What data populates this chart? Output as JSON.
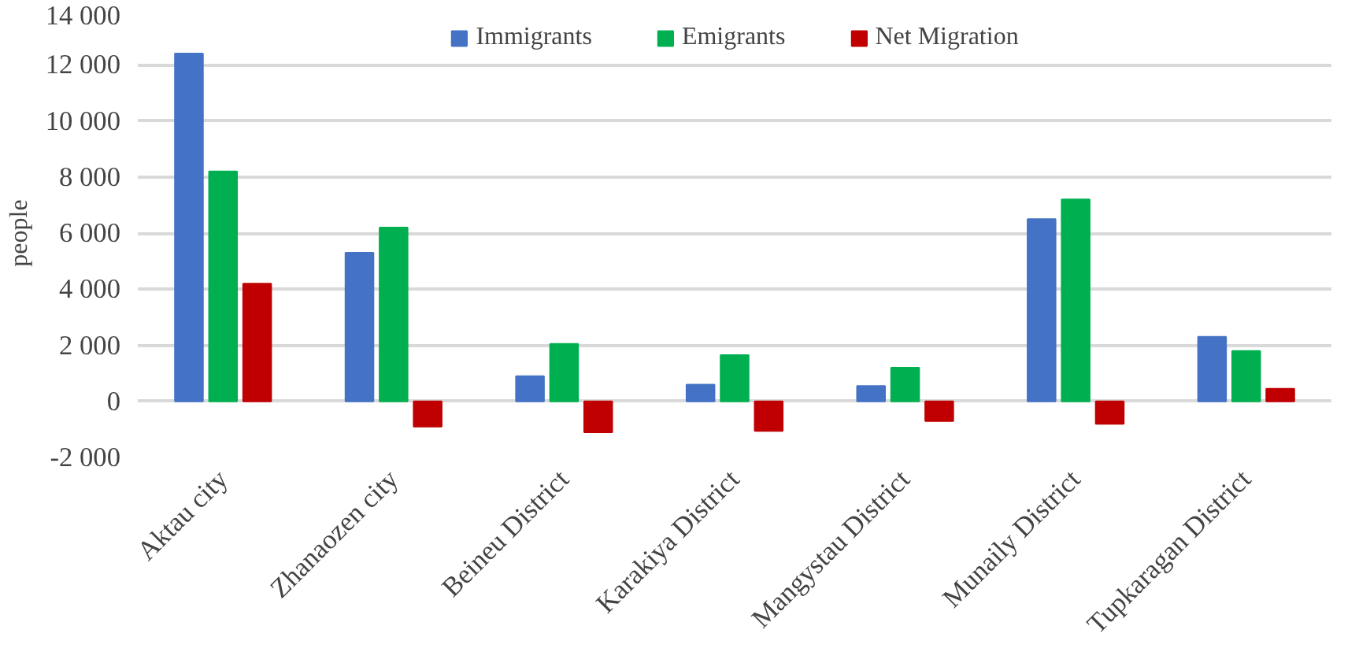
{
  "chart_data": {
    "type": "bar",
    "ylabel": "people",
    "categories": [
      "Aktau city",
      "Zhanaozen city",
      "Beineu District",
      "Karakiya District",
      "Mangystau District",
      "Munaily District",
      "Tupkaragan District"
    ],
    "series": [
      {
        "name": "Immigrants",
        "color": "#4472c4",
        "values": [
          12400,
          5300,
          900,
          600,
          550,
          6500,
          2300
        ]
      },
      {
        "name": "Emigrants",
        "color": "#00b050",
        "values": [
          8200,
          6200,
          2050,
          1650,
          1200,
          7200,
          1800
        ]
      },
      {
        "name": "Net Migration",
        "color": "#c00000",
        "values": [
          4200,
          -900,
          -1100,
          -1050,
          -700,
          -800,
          450
        ]
      }
    ],
    "ylim": [
      -2000,
      14000
    ],
    "yticks": [
      {
        "value": -2000,
        "label": "-2 000"
      },
      0,
      {
        "value": 2000,
        "label": "2 000"
      },
      {
        "value": 4000,
        "label": "4 000"
      },
      {
        "value": 6000,
        "label": "6 000"
      },
      {
        "value": 8000,
        "label": "8 000"
      },
      {
        "value": 10000,
        "label": "10 000"
      },
      {
        "value": 12000,
        "label": "12 000"
      },
      {
        "value": 14000,
        "label": "14 000"
      }
    ],
    "grid": "y",
    "legend": "top"
  }
}
